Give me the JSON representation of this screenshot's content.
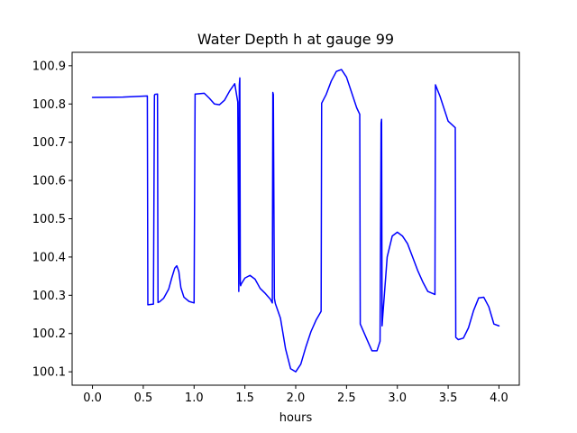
{
  "chart_data": {
    "type": "line",
    "title": "Water Depth h at gauge 99",
    "xlabel": "hours",
    "ylabel": "",
    "xlim": [
      -0.2,
      4.2
    ],
    "ylim": [
      100.065,
      100.935
    ],
    "xticks": [
      0.0,
      0.5,
      1.0,
      1.5,
      2.0,
      2.5,
      3.0,
      3.5,
      4.0
    ],
    "xtick_labels": [
      "0.0",
      "0.5",
      "1.0",
      "1.5",
      "2.0",
      "2.5",
      "3.0",
      "3.5",
      "4.0"
    ],
    "yticks": [
      100.1,
      100.2,
      100.3,
      100.4,
      100.5,
      100.6,
      100.7,
      100.8,
      100.9
    ],
    "ytick_labels": [
      "100.1",
      "100.2",
      "100.3",
      "100.4",
      "100.5",
      "100.6",
      "100.7",
      "100.8",
      "100.9"
    ],
    "grid": false,
    "series": [
      {
        "color": "#0000ff",
        "x": [
          0.0,
          0.3,
          0.54,
          0.545,
          0.6,
          0.61,
          0.615,
          0.64,
          0.645,
          0.66,
          0.7,
          0.75,
          0.78,
          0.81,
          0.83,
          0.85,
          0.87,
          0.9,
          0.95,
          1.0,
          1.01,
          1.015,
          1.1,
          1.15,
          1.2,
          1.25,
          1.3,
          1.35,
          1.4,
          1.43,
          1.44,
          1.445,
          1.45,
          1.455,
          1.458,
          1.465,
          1.5,
          1.55,
          1.6,
          1.65,
          1.7,
          1.75,
          1.77,
          1.775,
          1.78,
          1.79,
          1.8,
          1.85,
          1.9,
          1.95,
          2.0,
          2.05,
          2.1,
          2.15,
          2.2,
          2.25,
          2.255,
          2.3,
          2.35,
          2.4,
          2.45,
          2.5,
          2.55,
          2.6,
          2.63,
          2.635,
          2.7,
          2.75,
          2.8,
          2.83,
          2.84,
          2.845,
          2.85,
          2.855,
          2.9,
          2.95,
          3.0,
          3.05,
          3.1,
          3.15,
          3.2,
          3.25,
          3.3,
          3.37,
          3.375,
          3.42,
          3.5,
          3.57,
          3.575,
          3.6,
          3.65,
          3.7,
          3.75,
          3.8,
          3.85,
          3.9,
          3.95,
          4.0
        ],
        "y": [
          100.817,
          100.818,
          100.821,
          100.275,
          100.277,
          100.823,
          100.825,
          100.826,
          100.281,
          100.283,
          100.292,
          100.316,
          100.345,
          100.371,
          100.377,
          100.362,
          100.32,
          100.295,
          100.284,
          100.28,
          100.826,
          100.826,
          100.828,
          100.815,
          100.8,
          100.798,
          100.81,
          100.834,
          100.853,
          100.805,
          100.31,
          100.85,
          100.868,
          100.33,
          100.325,
          100.33,
          100.345,
          100.352,
          100.342,
          100.318,
          100.305,
          100.29,
          100.28,
          100.83,
          100.825,
          100.292,
          100.278,
          100.24,
          100.16,
          100.108,
          100.1,
          100.12,
          100.165,
          100.205,
          100.235,
          100.258,
          100.802,
          100.825,
          100.86,
          100.885,
          100.89,
          100.87,
          100.83,
          100.79,
          100.773,
          100.225,
          100.185,
          100.155,
          100.155,
          100.18,
          100.75,
          100.76,
          100.22,
          100.24,
          100.4,
          100.455,
          100.465,
          100.455,
          100.435,
          100.4,
          100.365,
          100.335,
          100.31,
          100.302,
          100.85,
          100.82,
          100.755,
          100.738,
          100.19,
          100.184,
          100.188,
          100.215,
          100.26,
          100.293,
          100.295,
          100.27,
          100.225,
          100.22
        ]
      }
    ]
  }
}
